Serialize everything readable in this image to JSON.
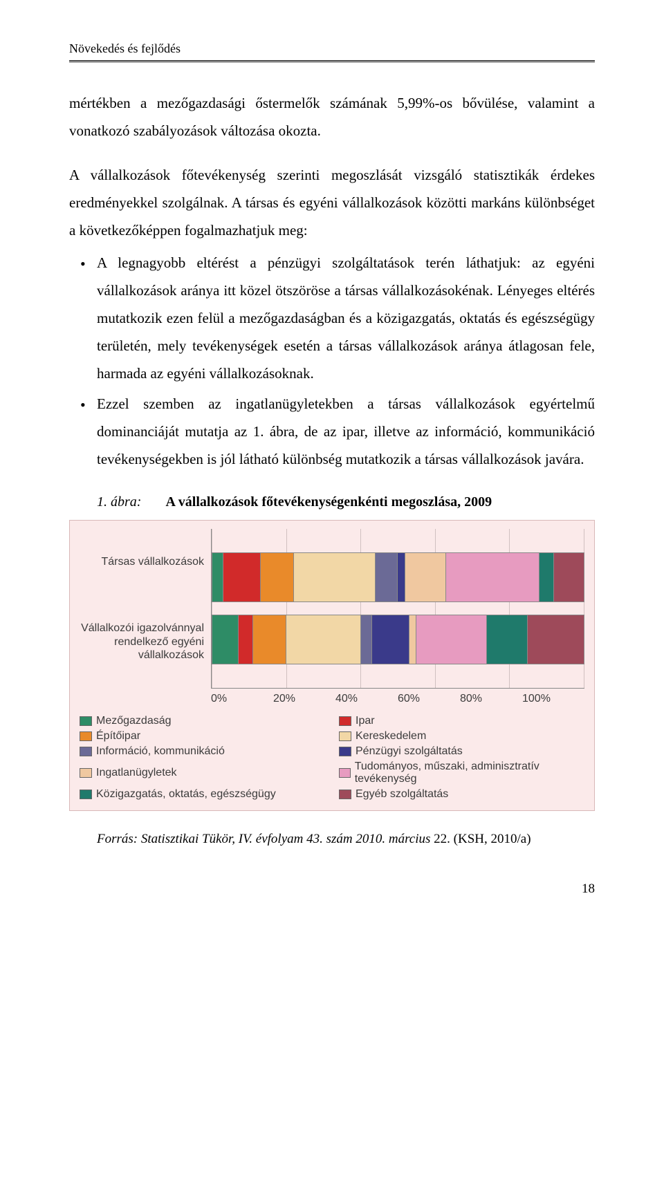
{
  "header": {
    "running_title": "Növekedés és fejlődés"
  },
  "para1": "mértékben a mezőgazdasági őstermelők számának 5,99%-os bővülése, valamint a vonatkozó szabályozások változása okozta.",
  "para2": "A vállalkozások főtevékenység szerinti megoszlását vizsgáló statisztikák érdekes eredményekkel szolgálnak. A társas és egyéni vállalkozások közötti markáns különbséget a következőképpen fogalmazhatjuk meg:",
  "bullet1": "A legnagyobb eltérést a pénzügyi szolgáltatások terén láthatjuk: az egyéni vállalkozások aránya itt közel ötszöröse a társas vállalkozásokénak. Lényeges eltérés mutatkozik ezen felül a mezőgazdaságban és a közigazgatás, oktatás és egészségügy területén, mely tevékenységek esetén a társas vállalkozások aránya átlagosan fele, harmada az egyéni vállalkozásoknak.",
  "bullet2": " Ezzel szemben az ingatlanügyletekben a társas vállalkozások egyértelmű dominanciáját mutatja az 1. ábra, de az ipar, illetve az információ, kommunikáció tevékenységekben is jól látható különbség mutatkozik a társas vállalkozások javára.",
  "figure": {
    "label": "1. ábra:",
    "title": "A vállalkozások főtevékenységenkénti megoszlása, 2009"
  },
  "chart": {
    "type": "stacked-bar-100",
    "background_color": "#fbeaea",
    "border_color": "#d8b8b8",
    "grid_color": "#d0c0c0",
    "axis_color": "#888888",
    "text_color": "#3b3b3b",
    "font_family": "Arial",
    "label_fontsize": 16,
    "xticks": [
      "0%",
      "20%",
      "40%",
      "60%",
      "80%",
      "100%"
    ],
    "categories": [
      "Társas vállalkozások",
      "Vállalkozói igazolvánnyal rendelkező egyéni vállalkozások"
    ],
    "series": [
      {
        "name": "Mezőgazdaság",
        "color": "#2e8c66",
        "values": [
          3,
          7
        ]
      },
      {
        "name": "Ipar",
        "color": "#d12a2a",
        "values": [
          10,
          4
        ]
      },
      {
        "name": "Építőipar",
        "color": "#e98a2a",
        "values": [
          9,
          9
        ]
      },
      {
        "name": "Kereskedelem",
        "color": "#f2d7a6",
        "values": [
          22,
          20
        ]
      },
      {
        "name": "Információ, kommunikáció",
        "color": "#6b6a96",
        "values": [
          6,
          3
        ]
      },
      {
        "name": "Pénzügyi szolgáltatás",
        "color": "#3a3a8a",
        "values": [
          2,
          10
        ]
      },
      {
        "name": "Ingatlanügyletek",
        "color": "#f0c8a0",
        "values": [
          11,
          2
        ]
      },
      {
        "name": "Tudományos, műszaki, adminisztratív tevékenység",
        "color": "#e79bc0",
        "values": [
          25,
          19
        ]
      },
      {
        "name": "Közigazgatás, oktatás, egészségügy",
        "color": "#1f7a6b",
        "values": [
          4,
          11
        ]
      },
      {
        "name": "Egyéb szolgáltatás",
        "color": "#9e4a5a",
        "values": [
          8,
          15
        ]
      }
    ]
  },
  "source": {
    "italic": "Forrás: Statisztikai Tükör, IV. évfolyam 43. szám 2010. március ",
    "plain": "22. (KSH, 2010/a)"
  },
  "page_number": "18"
}
